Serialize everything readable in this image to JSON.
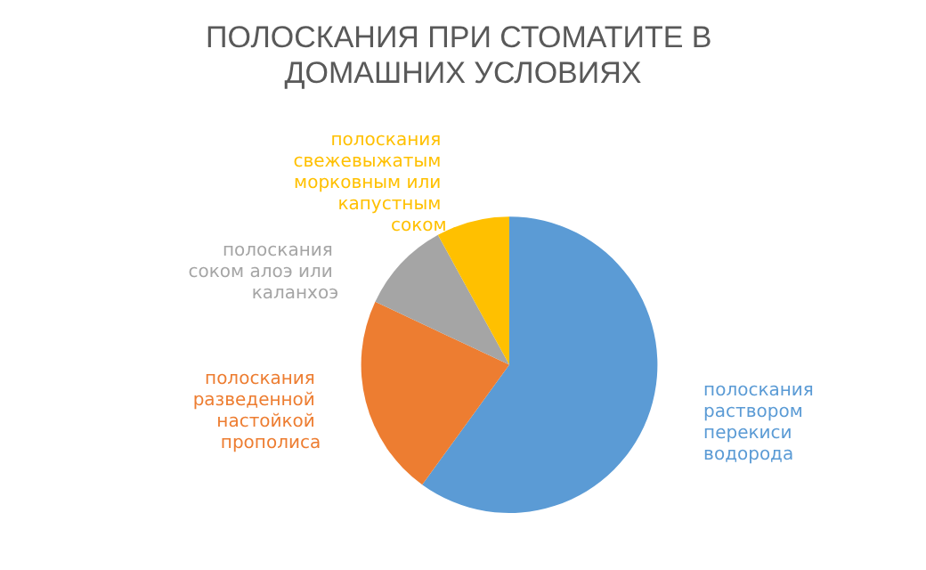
{
  "chart_data": {
    "type": "pie",
    "title": "ПОЛОСКАНИЯ ПРИ СТОМАТИТЕ В ДОМАШНИХ УСЛОВИЯХ",
    "categories": [
      "полоскания раствором перекиси водорода",
      "полоскания разведенной настойкой прополиса",
      "полоскания соком алоэ или каланхоэ",
      "полоскания свежевыжатым морковным или капустным соком"
    ],
    "values": [
      60,
      22,
      10,
      8
    ],
    "colors": [
      "#5b9bd5",
      "#ed7d31",
      "#a5a5a5",
      "#ffc000"
    ],
    "legend": false
  }
}
